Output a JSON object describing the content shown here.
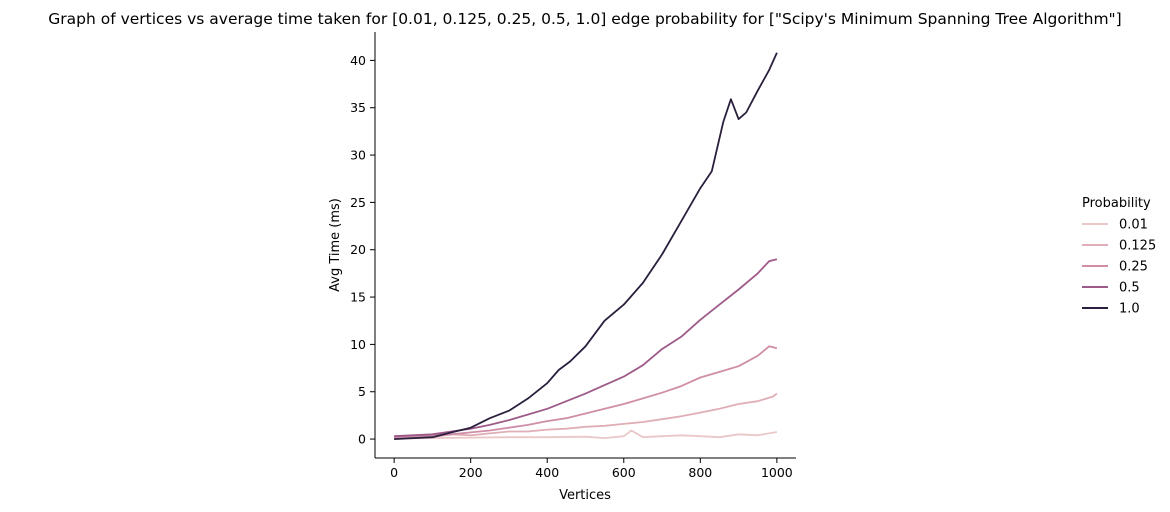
{
  "chart_data": {
    "type": "line",
    "title": "Graph of vertices vs average time taken for [0.01, 0.125, 0.25, 0.5, 1.0] edge probability for [\"Scipy's Minimum Spanning Tree Algorithm\"]",
    "xlabel": "Vertices",
    "ylabel": "Avg Time (ms)",
    "xlim": [
      -50,
      1050
    ],
    "ylim": [
      -2,
      43
    ],
    "x_ticks": [
      0,
      200,
      400,
      600,
      800,
      1000
    ],
    "y_ticks": [
      0,
      5,
      10,
      15,
      20,
      25,
      30,
      35,
      40
    ],
    "grid": false,
    "legend": {
      "title": "Probability",
      "placement": "right"
    },
    "series": [
      {
        "name": "0.01",
        "color": "#ebc8c8",
        "points": [
          [
            0,
            0.05
          ],
          [
            100,
            0.1
          ],
          [
            200,
            0.15
          ],
          [
            300,
            0.2
          ],
          [
            400,
            0.2
          ],
          [
            500,
            0.25
          ],
          [
            550,
            0.1
          ],
          [
            600,
            0.3
          ],
          [
            620,
            0.9
          ],
          [
            650,
            0.2
          ],
          [
            700,
            0.3
          ],
          [
            750,
            0.4
          ],
          [
            800,
            0.3
          ],
          [
            850,
            0.2
          ],
          [
            900,
            0.5
          ],
          [
            950,
            0.4
          ],
          [
            1000,
            0.75
          ]
        ]
      },
      {
        "name": "0.125",
        "color": "#e0aeb6",
        "points": [
          [
            0,
            0.1
          ],
          [
            100,
            0.2
          ],
          [
            150,
            0.5
          ],
          [
            200,
            0.4
          ],
          [
            250,
            0.6
          ],
          [
            300,
            0.8
          ],
          [
            350,
            0.8
          ],
          [
            400,
            1.0
          ],
          [
            450,
            1.1
          ],
          [
            500,
            1.3
          ],
          [
            550,
            1.4
          ],
          [
            600,
            1.6
          ],
          [
            650,
            1.8
          ],
          [
            700,
            2.1
          ],
          [
            750,
            2.4
          ],
          [
            800,
            2.8
          ],
          [
            850,
            3.2
          ],
          [
            900,
            3.7
          ],
          [
            950,
            4.0
          ],
          [
            990,
            4.5
          ],
          [
            1000,
            4.8
          ]
        ]
      },
      {
        "name": "0.25",
        "color": "#cf8ea6",
        "points": [
          [
            0,
            0.2
          ],
          [
            100,
            0.4
          ],
          [
            150,
            0.5
          ],
          [
            200,
            0.7
          ],
          [
            250,
            0.9
          ],
          [
            300,
            1.2
          ],
          [
            350,
            1.5
          ],
          [
            400,
            1.9
          ],
          [
            450,
            2.2
          ],
          [
            500,
            2.7
          ],
          [
            550,
            3.2
          ],
          [
            600,
            3.7
          ],
          [
            650,
            4.3
          ],
          [
            700,
            4.9
          ],
          [
            750,
            5.6
          ],
          [
            800,
            6.5
          ],
          [
            850,
            7.1
          ],
          [
            900,
            7.7
          ],
          [
            950,
            8.8
          ],
          [
            980,
            9.8
          ],
          [
            1000,
            9.6
          ]
        ]
      },
      {
        "name": "0.5",
        "color": "#9e5a88",
        "points": [
          [
            0,
            0.3
          ],
          [
            100,
            0.5
          ],
          [
            150,
            0.8
          ],
          [
            200,
            1.1
          ],
          [
            250,
            1.5
          ],
          [
            300,
            2.0
          ],
          [
            350,
            2.6
          ],
          [
            400,
            3.2
          ],
          [
            450,
            4.0
          ],
          [
            500,
            4.8
          ],
          [
            550,
            5.7
          ],
          [
            600,
            6.6
          ],
          [
            650,
            7.8
          ],
          [
            700,
            9.5
          ],
          [
            750,
            10.8
          ],
          [
            800,
            12.6
          ],
          [
            850,
            14.2
          ],
          [
            900,
            15.8
          ],
          [
            950,
            17.5
          ],
          [
            980,
            18.8
          ],
          [
            1000,
            19.0
          ]
        ]
      },
      {
        "name": "1.0",
        "color": "#2a1f3d",
        "points": [
          [
            0,
            0.0
          ],
          [
            50,
            0.1
          ],
          [
            100,
            0.2
          ],
          [
            150,
            0.7
          ],
          [
            200,
            1.2
          ],
          [
            250,
            2.2
          ],
          [
            300,
            3.0
          ],
          [
            350,
            4.3
          ],
          [
            400,
            5.9
          ],
          [
            430,
            7.3
          ],
          [
            460,
            8.2
          ],
          [
            500,
            9.8
          ],
          [
            550,
            12.5
          ],
          [
            600,
            14.2
          ],
          [
            650,
            16.5
          ],
          [
            700,
            19.5
          ],
          [
            750,
            23.0
          ],
          [
            800,
            26.5
          ],
          [
            830,
            28.3
          ],
          [
            860,
            33.5
          ],
          [
            880,
            35.9
          ],
          [
            900,
            33.8
          ],
          [
            920,
            34.5
          ],
          [
            950,
            36.8
          ],
          [
            980,
            39.0
          ],
          [
            1000,
            40.8
          ]
        ]
      }
    ]
  }
}
